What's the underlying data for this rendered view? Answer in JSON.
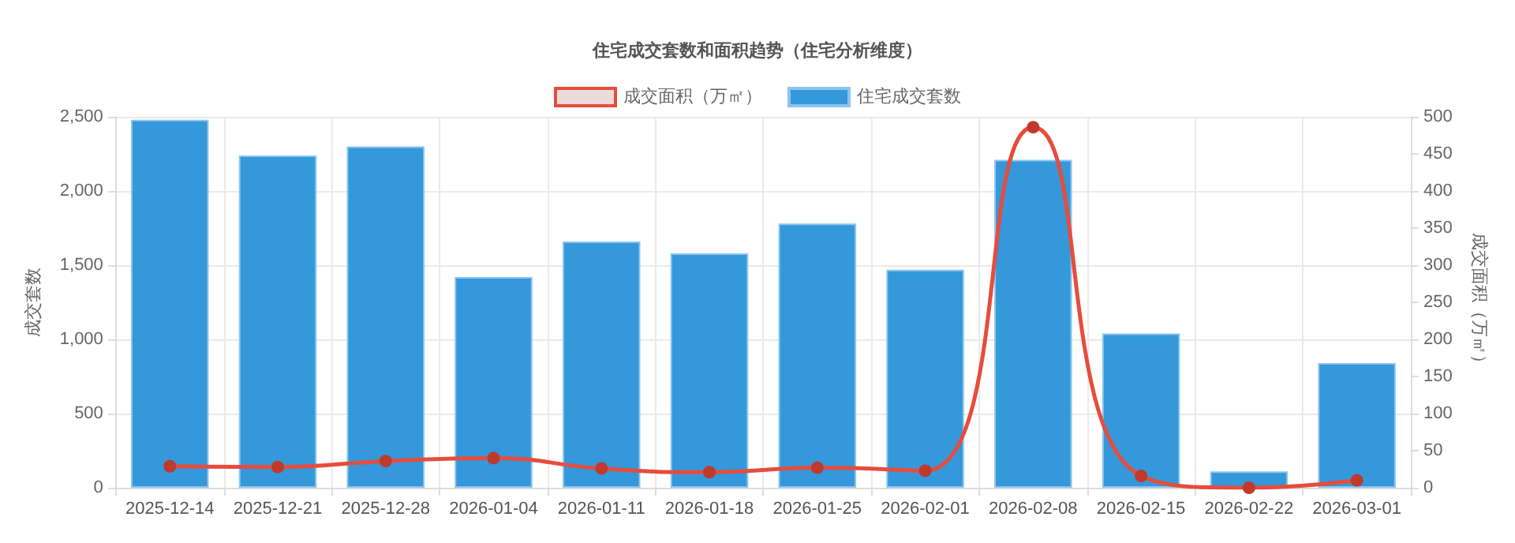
{
  "chart_data": {
    "type": "bar",
    "title": "住宅成交套数和面积趋势（住宅分析维度）",
    "categories": [
      "2025-12-14",
      "2025-12-21",
      "2025-12-28",
      "2026-01-04",
      "2026-01-11",
      "2026-01-18",
      "2026-01-25",
      "2026-02-01",
      "2026-02-08",
      "2026-02-15",
      "2026-02-22",
      "2026-03-01"
    ],
    "series": [
      {
        "name": "成交面积（万㎡）",
        "type": "line",
        "axis": "y2",
        "color": "#e74c3c",
        "values": [
          29,
          28,
          36,
          40,
          26,
          21,
          27,
          23,
          486,
          16,
          0,
          10
        ]
      },
      {
        "name": "住宅成交套数",
        "color": "#3498db",
        "values": [
          2480,
          2240,
          2300,
          1420,
          1660,
          1580,
          1780,
          1470,
          2210,
          1040,
          110,
          840
        ]
      }
    ],
    "ylabel": "成交套数",
    "y2label": "成交面积（万㎡）",
    "ylim": [
      0,
      2500
    ],
    "yticks": [
      0,
      500,
      {
        "value": 1000,
        "label": "1,000"
      },
      {
        "value": 1500,
        "label": "1,500"
      },
      {
        "value": 2000,
        "label": "2,000"
      },
      {
        "value": 2500,
        "label": "2,500"
      }
    ],
    "y2lim": [
      0,
      500
    ],
    "y2ticks": [
      0,
      50,
      100,
      150,
      200,
      250,
      300,
      350,
      400,
      450,
      500
    ],
    "grid": true,
    "legend": "top",
    "marker": "circle",
    "line_style": "solid"
  }
}
